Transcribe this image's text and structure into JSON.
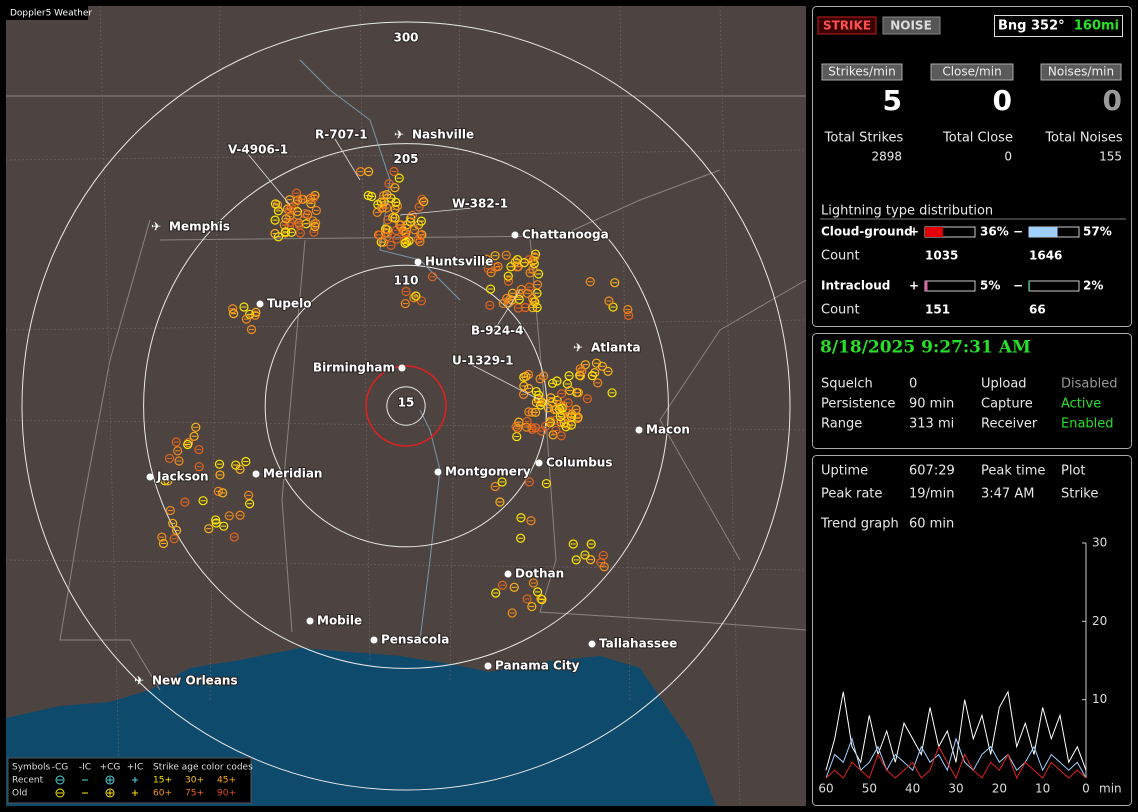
{
  "map": {
    "title": "Doppler5 Weather",
    "range_rings": [
      300,
      205,
      110,
      15
    ],
    "cities": [
      "Nashville",
      "Memphis",
      "Chattanooga",
      "Huntsville",
      "Tupelo",
      "Atlanta",
      "Birmingham",
      "Macon",
      "Montgomery",
      "Columbus",
      "Jackson",
      "Meridian",
      "Dothan",
      "Mobile",
      "Pensacola",
      "Tallahassee",
      "Panama City",
      "New Orleans"
    ],
    "storms": [
      "R-707-1",
      "V-4906-1",
      "W-382-1",
      "B-924-4",
      "U-1329-1"
    ],
    "legend": {
      "symbols": "Symbols",
      "headers": [
        "-CG",
        "-IC",
        "+CG",
        "+IC"
      ],
      "age_title": "Strike age color codes",
      "rows": [
        "Recent",
        "Old"
      ],
      "recent_ages": [
        "15+",
        "30+",
        "45+"
      ],
      "old_ages": [
        "60+",
        "75+",
        "90+"
      ]
    }
  },
  "panel": {
    "buttons": [
      "STRIKE",
      "NOISE"
    ],
    "bearing": "Bng 352°",
    "distance": "160mi",
    "rates": [
      {
        "label": "Strikes/min",
        "value": 5
      },
      {
        "label": "Close/min",
        "value": 0
      },
      {
        "label": "Noises/min",
        "value": 0
      }
    ],
    "totals": [
      {
        "label": "Total Strikes",
        "value": 2898
      },
      {
        "label": "Total Close",
        "value": 0
      },
      {
        "label": "Total Noises",
        "value": 155
      }
    ],
    "distribution": {
      "title": "Lightning type distribution",
      "count_label": "Count",
      "rows": [
        {
          "name": "Cloud-ground",
          "pos_sign": "+",
          "neg_sign": "−",
          "pos": {
            "value": 36,
            "label": "36%"
          },
          "neg": {
            "value": 57,
            "label": "57%"
          },
          "pos_count": 1035,
          "neg_count": 1646
        },
        {
          "name": "Intracloud",
          "pos_sign": "+",
          "neg_sign": "−",
          "pos": {
            "value": 5,
            "label": "5%"
          },
          "neg": {
            "value": 2,
            "label": "2%"
          },
          "pos_count": 151,
          "neg_count": 66
        }
      ]
    },
    "datetime": "8/18/2025 9:27:31 AM",
    "settings": [
      [
        "Squelch",
        "0",
        "Upload",
        "Disabled"
      ],
      [
        "Persistence",
        "90 min",
        "Capture",
        "Active"
      ],
      [
        "Range",
        "313 mi",
        "Receiver",
        "Enabled"
      ]
    ],
    "stats": [
      [
        "Uptime",
        "607:29",
        "Peak time",
        "Plot"
      ],
      [
        "Peak rate",
        "19/min",
        "3:47 AM",
        "Strike"
      ],
      [
        "Trend graph",
        "60 min"
      ]
    ]
  },
  "chart_data": {
    "type": "line",
    "xlim": [
      60,
      0
    ],
    "ylim": [
      0,
      30
    ],
    "yticks": [
      10,
      20,
      30
    ],
    "xticks": [
      60,
      50,
      40,
      30,
      20,
      10,
      0
    ],
    "x_unit": "min",
    "x": [
      60,
      58,
      56,
      54,
      52,
      50,
      48,
      46,
      44,
      42,
      40,
      38,
      36,
      34,
      32,
      30,
      28,
      26,
      24,
      22,
      20,
      18,
      16,
      14,
      12,
      10,
      8,
      6,
      4,
      2,
      0
    ],
    "series": [
      {
        "color": "#ffffff",
        "values": [
          1,
          5,
          11,
          4,
          2,
          8,
          3,
          6,
          2,
          7,
          5,
          3,
          9,
          4,
          6,
          2,
          10,
          5,
          8,
          3,
          9,
          11,
          4,
          7,
          3,
          9,
          5,
          8,
          2,
          4,
          1
        ]
      },
      {
        "color": "#9fd0ff",
        "values": [
          0,
          3,
          2,
          5,
          1,
          2,
          4,
          1,
          3,
          2,
          1,
          4,
          2,
          3,
          1,
          5,
          2,
          1,
          3,
          4,
          2,
          3,
          1,
          2,
          4,
          1,
          3,
          2,
          1,
          2,
          0
        ]
      },
      {
        "color": "#e02020",
        "values": [
          0,
          1,
          0,
          2,
          1,
          0,
          3,
          1,
          0,
          1,
          2,
          0,
          1,
          4,
          2,
          0,
          3,
          1,
          0,
          2,
          1,
          3,
          0,
          2,
          1,
          0,
          2,
          1,
          0,
          1,
          0
        ]
      }
    ]
  }
}
